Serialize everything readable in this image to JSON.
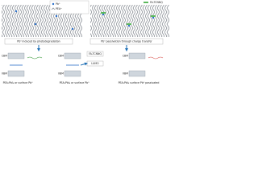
{
  "legend": {
    "pb0": "Pb⁰",
    "pea": "PEA⁺",
    "molecule": "FA-TCNNQ"
  },
  "top": {
    "left_caption": "Pb⁰ induced by photodegradation",
    "right_caption": "Pb⁰ passivation through charge transfer"
  },
  "panels": [
    {
      "cbm": "CBM",
      "vbm": "VBM",
      "label": "PEA₂PbI₄ or surface Pb⁰"
    },
    {
      "cbm": "CBM",
      "vbm": "VBM",
      "lumo": "LUMO",
      "molecule": "FA-TCNNQ",
      "label": "PEA₂PbI₄ or surface Pb⁰"
    },
    {
      "cbm": "CBM",
      "vbm": "VBM",
      "label": "PEA₂PbI₄ surface Pb⁰ passivated"
    }
  ]
}
